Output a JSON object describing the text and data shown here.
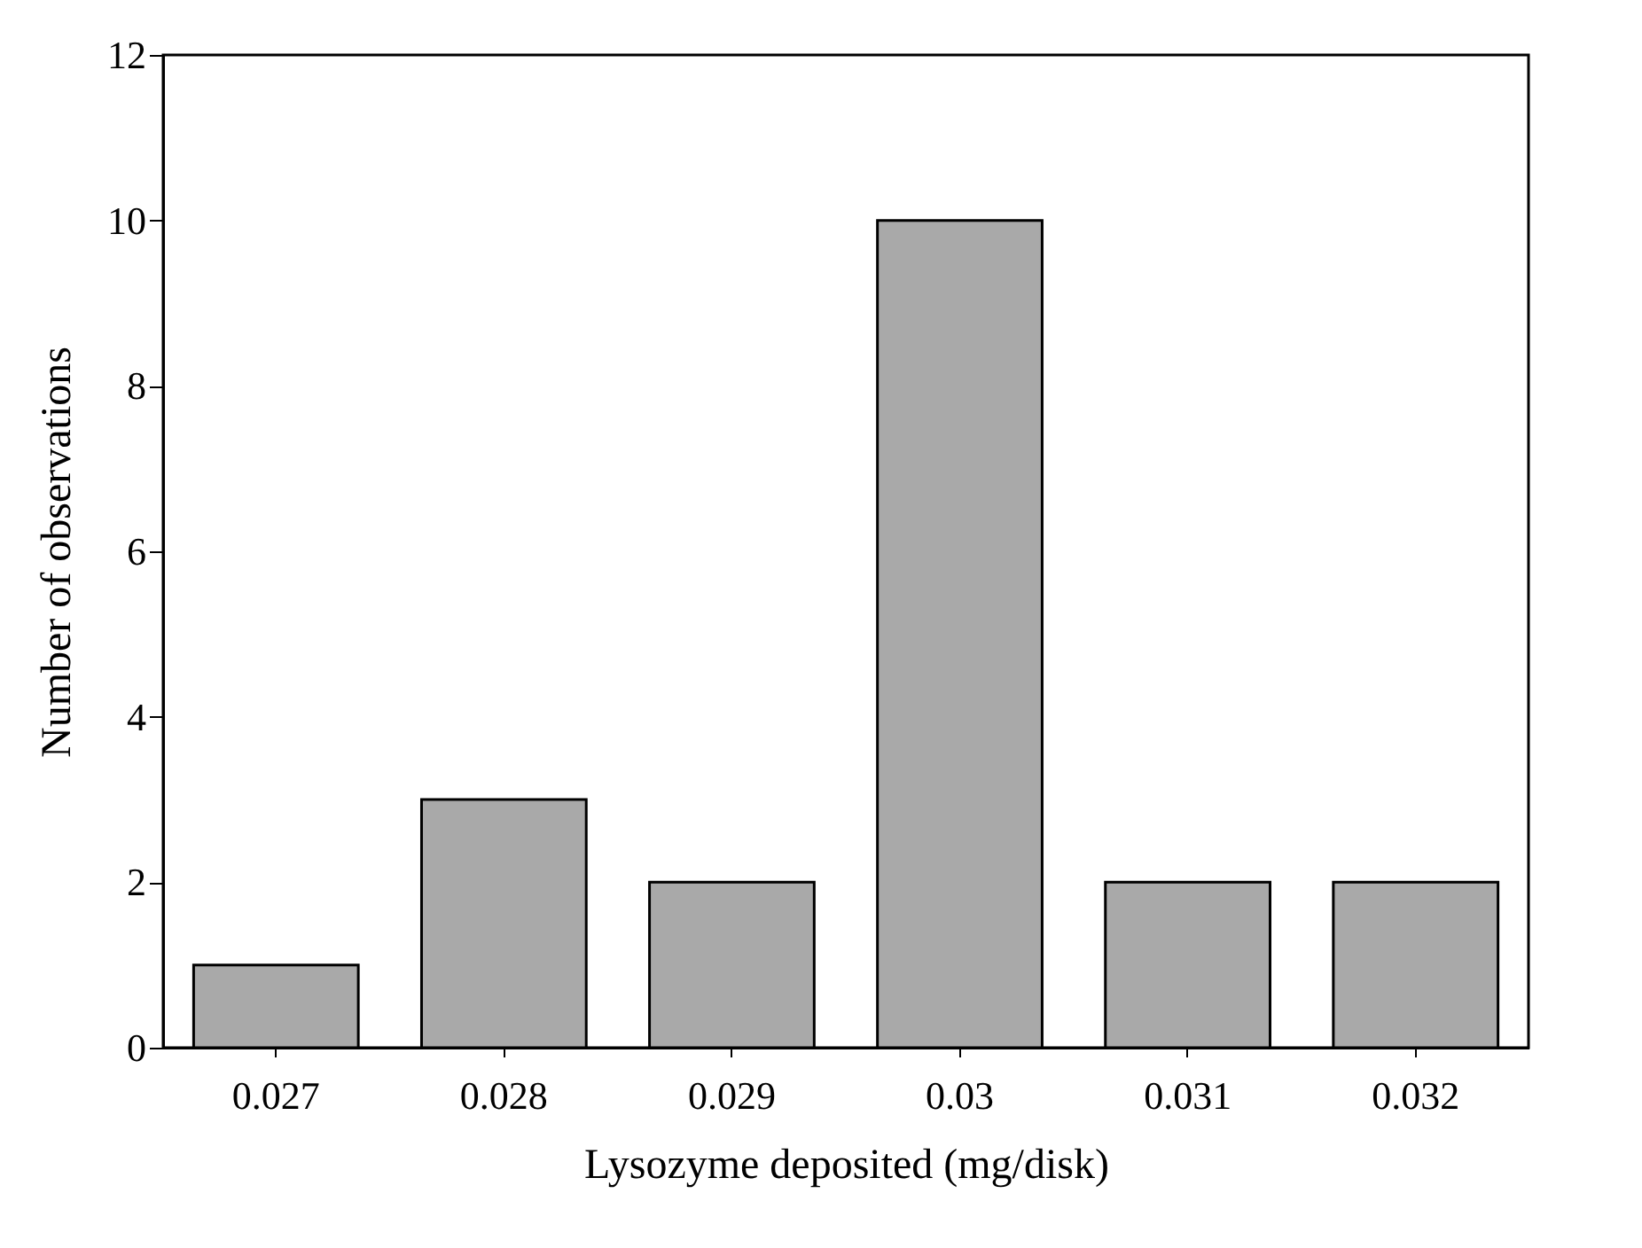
{
  "chart_data": {
    "type": "bar",
    "xlabel": "Lysozyme deposited (mg/disk)",
    "ylabel": "Number of observations",
    "categories": [
      "0.027",
      "0.028",
      "0.029",
      "0.03",
      "0.031",
      "0.032"
    ],
    "values": [
      1,
      3,
      2,
      10,
      2,
      2
    ],
    "color": "#a9a9a9",
    "ylim": [
      0,
      12
    ],
    "yticks": [
      0,
      2,
      4,
      6,
      8,
      10,
      12
    ],
    "grid": false
  }
}
